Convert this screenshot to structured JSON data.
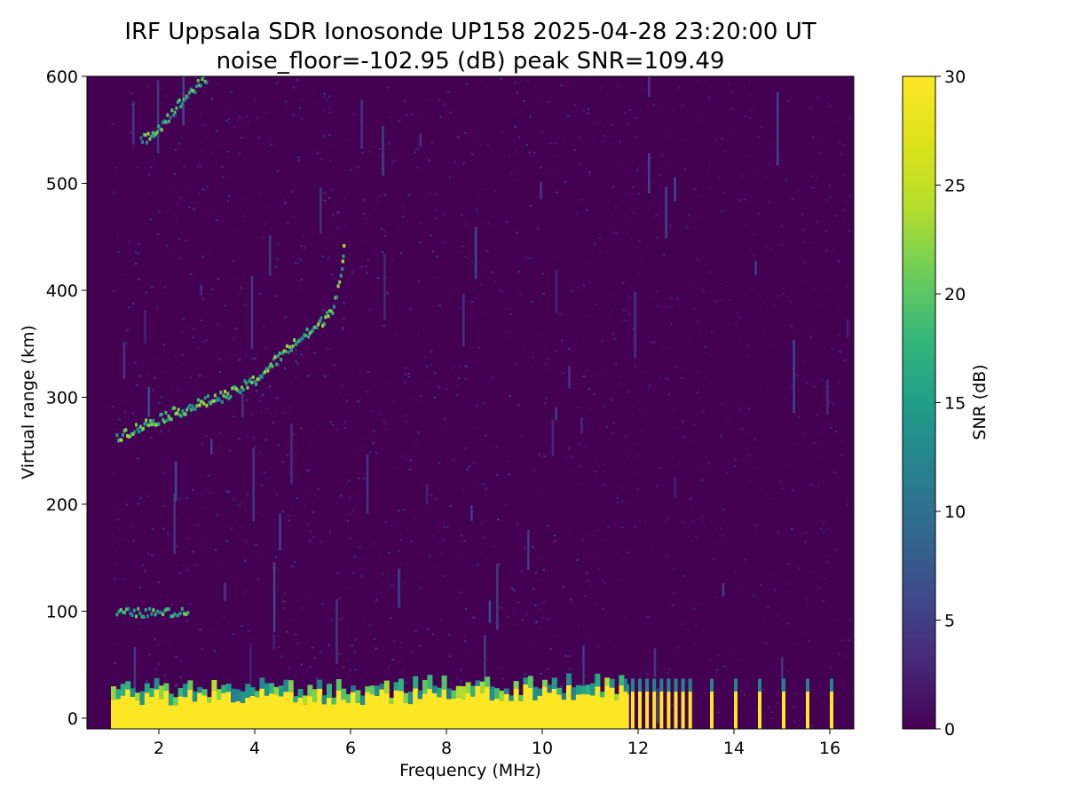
{
  "chart_data": {
    "type": "heatmap",
    "title": "IRF Uppsala SDR Ionosonde UP158 2025-04-28 23:20:00  UT",
    "subtitle": "noise_floor=-102.95 (dB) peak SNR=109.49",
    "xlabel": "Frequency (MHz)",
    "ylabel": "Virtual range (km)",
    "xlim": [
      0.5,
      16.5
    ],
    "ylim": [
      -10,
      600
    ],
    "xticks": [
      2,
      4,
      6,
      8,
      10,
      12,
      14,
      16
    ],
    "yticks": [
      0,
      100,
      200,
      300,
      400,
      500,
      600
    ],
    "colorbar": {
      "label": "SNR (dB)",
      "range": [
        0,
        30
      ],
      "ticks": [
        0,
        5,
        10,
        15,
        20,
        25,
        30
      ],
      "colormap": "viridis"
    },
    "data_frequency_range_mhz": [
      1.0,
      16.4
    ],
    "features": [
      {
        "name": "ground-clutter",
        "freq_mhz": [
          1.0,
          11.7
        ],
        "range_km": [
          -10,
          30
        ],
        "snr_db": 30
      },
      {
        "name": "sounding-lines",
        "freq_mhz": [
          11.7,
          11.85,
          12.0,
          12.15,
          12.3,
          12.45,
          12.6,
          12.75,
          12.9,
          13.05,
          13.5,
          14.0,
          14.5,
          15.0,
          15.5,
          16.0
        ],
        "range_km": [
          -10,
          25
        ],
        "snr_db": 30
      },
      {
        "name": "e-layer-echo",
        "freq_mhz": [
          1.1,
          2.6
        ],
        "range_km": 100,
        "snr_db": 20
      },
      {
        "name": "f-layer-trace",
        "points": [
          [
            1.1,
            265
          ],
          [
            1.5,
            272
          ],
          [
            2.0,
            282
          ],
          [
            2.5,
            290
          ],
          [
            3.0,
            298
          ],
          [
            3.5,
            305
          ],
          [
            4.0,
            318
          ],
          [
            4.4,
            335
          ],
          [
            4.8,
            352
          ],
          [
            5.3,
            368
          ],
          [
            5.6,
            385
          ],
          [
            5.8,
            420
          ],
          [
            5.85,
            445
          ]
        ],
        "snr_db": 20
      },
      {
        "name": "f-layer-second-hop",
        "points": [
          [
            1.6,
            540
          ],
          [
            2.0,
            555
          ],
          [
            2.4,
            575
          ],
          [
            2.7,
            590
          ],
          [
            3.0,
            600
          ]
        ],
        "snr_db": 18
      }
    ]
  }
}
